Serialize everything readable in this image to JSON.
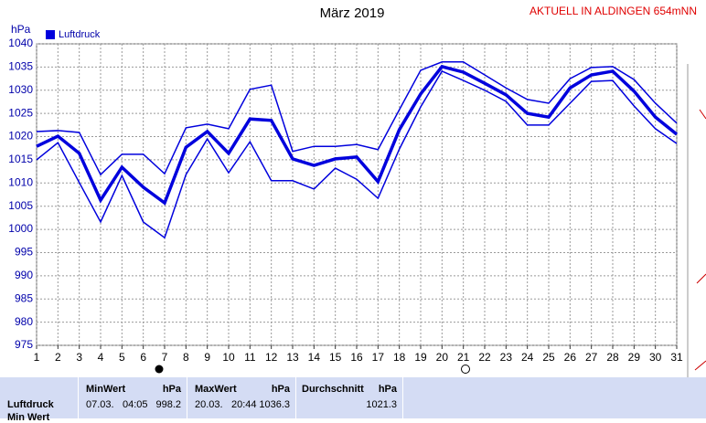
{
  "chart_data": {
    "type": "line",
    "title": "März 2019",
    "annotation": "AKTUELL IN ALDINGEN 654mNN",
    "y_label": "hPa",
    "x": [
      1,
      2,
      3,
      4,
      5,
      6,
      7,
      8,
      9,
      10,
      11,
      12,
      13,
      14,
      15,
      16,
      17,
      18,
      19,
      20,
      21,
      22,
      23,
      24,
      25,
      26,
      27,
      28,
      29,
      30,
      31
    ],
    "xlim": [
      1,
      31
    ],
    "xticks": [
      1,
      2,
      3,
      4,
      5,
      6,
      7,
      8,
      9,
      10,
      11,
      12,
      13,
      14,
      15,
      16,
      17,
      18,
      19,
      20,
      21,
      22,
      23,
      24,
      25,
      26,
      27,
      28,
      29,
      30,
      31
    ],
    "ylim": [
      975,
      1040
    ],
    "yticks": [
      975,
      980,
      985,
      990,
      995,
      1000,
      1005,
      1010,
      1015,
      1020,
      1025,
      1030,
      1035,
      1040
    ],
    "grid": true,
    "legend": "top-left",
    "series": [
      {
        "name": "Luftdruck",
        "color": "#0000dd",
        "values": [
          1017.9,
          1020.1,
          1016.4,
          1006.3,
          1013.4,
          1009.1,
          1005.7,
          1017.7,
          1021.1,
          1016.4,
          1023.8,
          1023.5,
          1015.2,
          1013.8,
          1015.2,
          1015.6,
          1010.3,
          1021.5,
          1029.2,
          1035.1,
          1033.9,
          1031.5,
          1029.0,
          1025.0,
          1024.2,
          1030.5,
          1033.3,
          1034.1,
          1029.8,
          1024.2,
          1020.5
        ]
      },
      {
        "color": "#0000dd",
        "values": [
          1021.1,
          1021.3,
          1020.9,
          1011.8,
          1016.2,
          1016.2,
          1012.0,
          1021.9,
          1022.7,
          1021.7,
          1030.2,
          1031.1,
          1016.8,
          1017.9,
          1017.9,
          1018.3,
          1017.2,
          1025.8,
          1034.3,
          1036.1,
          1036.1,
          1033.3,
          1030.5,
          1028.0,
          1027.2,
          1032.5,
          1034.9,
          1035.1,
          1032.3,
          1027.2,
          1022.9
        ]
      },
      {
        "color": "#0000dd",
        "values": [
          1015.0,
          1018.7,
          1010.1,
          1001.6,
          1011.6,
          1001.6,
          998.2,
          1011.8,
          1019.5,
          1012.2,
          1018.9,
          1010.5,
          1010.5,
          1008.7,
          1013.2,
          1010.8,
          1006.7,
          1017.3,
          1026.4,
          1034.1,
          1032.1,
          1030.0,
          1027.6,
          1022.5,
          1022.5,
          1027.2,
          1031.9,
          1032.1,
          1026.6,
          1021.7,
          1018.5
        ]
      }
    ]
  },
  "summary": {
    "row_label": "Luftdruck",
    "next_row": "Min Wert",
    "columns": [
      {
        "title": "MinWert",
        "unit": "hPa",
        "date": "07.03.",
        "time": "04:05",
        "value": "998.2"
      },
      {
        "title": "MaxWert",
        "unit": "hPa",
        "date": "20.03.",
        "time": "20:44",
        "value": "1036.3"
      },
      {
        "title": "Durchschnitt",
        "unit": "hPa",
        "value": "1021.3"
      }
    ]
  }
}
